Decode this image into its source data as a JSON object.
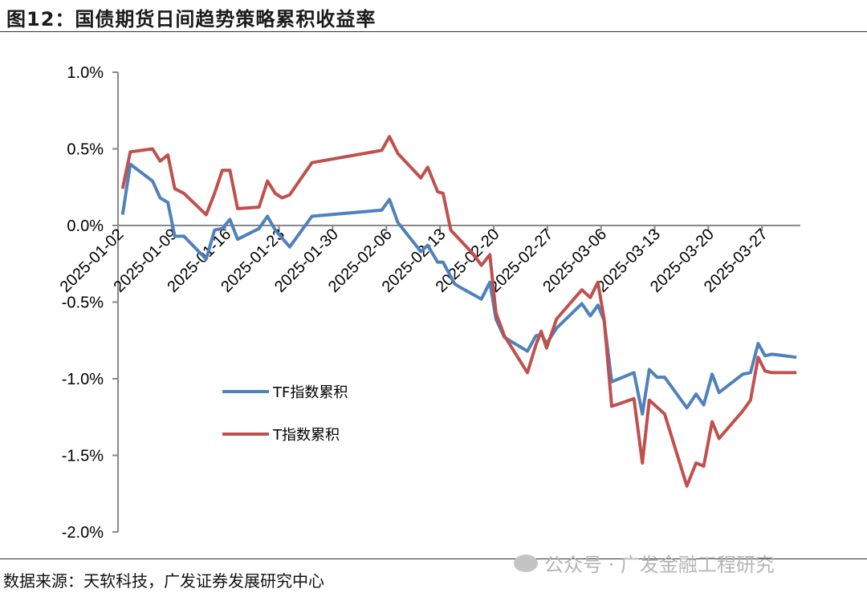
{
  "title": "图12：国债期货日间趋势策略累积收益率",
  "source": "数据来源：天软科技，广发证券发展研究中心",
  "watermark": "公众号 · 广发金融工程研究",
  "chart_data": {
    "type": "line",
    "title": "国债期货日间趋势策略累积收益率",
    "xlabel": "",
    "ylabel": "",
    "x_unit": "days since 2025-01-02",
    "xlim": [
      0,
      89
    ],
    "ylim": [
      -2.0,
      1.0
    ],
    "y_ticks": [
      "1.0%",
      "0.5%",
      "0.0%",
      "-0.5%",
      "-1.0%",
      "-1.5%",
      "-2.0%"
    ],
    "y_tick_values": [
      1.0,
      0.5,
      0.0,
      -0.5,
      -1.0,
      -1.5,
      -2.0
    ],
    "x_ticks": [
      "2025-01-02",
      "2025-01-09",
      "2025-01-16",
      "2025-01-23",
      "2025-01-30",
      "2025-02-06",
      "2025-02-13",
      "2025-02-20",
      "2025-02-27",
      "2025-03-06",
      "2025-03-13",
      "2025-03-20",
      "2025-03-27"
    ],
    "x_tick_values": [
      0,
      7,
      14,
      21,
      28,
      35,
      42,
      49,
      56,
      63,
      70,
      77,
      84
    ],
    "grid": false,
    "legend_position": "lower-left",
    "series": [
      {
        "name": "TF指数累积",
        "color": "#4f81bd",
        "x": [
          0.6,
          1.6,
          4.5,
          5.5,
          6.5,
          7.4,
          8.6,
          11.5,
          12.6,
          13.6,
          14.6,
          15.6,
          18.4,
          19.5,
          20.5,
          22.4,
          25.3,
          34.4,
          35.4,
          36.5,
          39.5,
          40.4,
          41.7,
          42.4,
          43.9,
          44.5,
          47.4,
          48.5,
          49.3,
          50.4,
          53.4,
          54.5,
          55.2,
          55.9,
          57.2,
          60.5,
          61.6,
          62.6,
          63.4,
          64.4,
          67.3,
          68.4,
          69.3,
          70.3,
          71.3,
          74.2,
          75.4,
          76.4,
          77.5,
          78.4,
          81.5,
          82.5,
          83.5,
          84.4,
          85.3,
          88.5
        ],
        "y": [
          0.07,
          0.4,
          0.29,
          0.18,
          0.15,
          -0.07,
          -0.07,
          -0.22,
          -0.03,
          -0.02,
          0.04,
          -0.09,
          -0.02,
          0.06,
          -0.03,
          -0.14,
          0.06,
          0.1,
          0.17,
          0.02,
          -0.17,
          -0.13,
          -0.24,
          -0.24,
          -0.38,
          -0.4,
          -0.48,
          -0.37,
          -0.61,
          -0.73,
          -0.82,
          -0.72,
          -0.71,
          -0.77,
          -0.67,
          -0.51,
          -0.59,
          -0.52,
          -0.62,
          -1.02,
          -0.96,
          -1.23,
          -0.94,
          -0.99,
          -0.99,
          -1.19,
          -1.1,
          -1.17,
          -0.97,
          -1.09,
          -0.97,
          -0.96,
          -0.77,
          -0.85,
          -0.84,
          -0.86
        ]
      },
      {
        "name": "T指数累积",
        "color": "#c0504d",
        "x": [
          0.6,
          1.6,
          4.5,
          5.5,
          6.5,
          7.4,
          8.6,
          11.5,
          12.6,
          13.6,
          14.6,
          15.6,
          18.4,
          19.5,
          20.5,
          21.4,
          22.4,
          25.3,
          34.4,
          35.4,
          36.5,
          39.5,
          40.4,
          41.7,
          42.4,
          43.4,
          46.4,
          47.4,
          48.5,
          49.3,
          50.4,
          53.4,
          54.5,
          55.2,
          55.9,
          57.2,
          60.5,
          61.6,
          62.6,
          63.4,
          64.4,
          67.3,
          68.4,
          69.3,
          71.3,
          74.2,
          75.4,
          76.4,
          77.5,
          78.4,
          81.5,
          82.5,
          83.5,
          84.4,
          85.3,
          88.5
        ],
        "y": [
          0.24,
          0.48,
          0.5,
          0.42,
          0.46,
          0.24,
          0.21,
          0.07,
          0.21,
          0.36,
          0.36,
          0.11,
          0.12,
          0.29,
          0.21,
          0.18,
          0.2,
          0.41,
          0.49,
          0.58,
          0.47,
          0.31,
          0.38,
          0.22,
          0.21,
          -0.03,
          -0.19,
          -0.26,
          -0.19,
          -0.57,
          -0.72,
          -0.96,
          -0.78,
          -0.69,
          -0.8,
          -0.61,
          -0.42,
          -0.47,
          -0.37,
          -0.61,
          -1.18,
          -1.13,
          -1.55,
          -1.14,
          -1.23,
          -1.7,
          -1.55,
          -1.57,
          -1.28,
          -1.39,
          -1.21,
          -1.14,
          -0.86,
          -0.95,
          -0.96,
          -0.96
        ]
      }
    ]
  }
}
